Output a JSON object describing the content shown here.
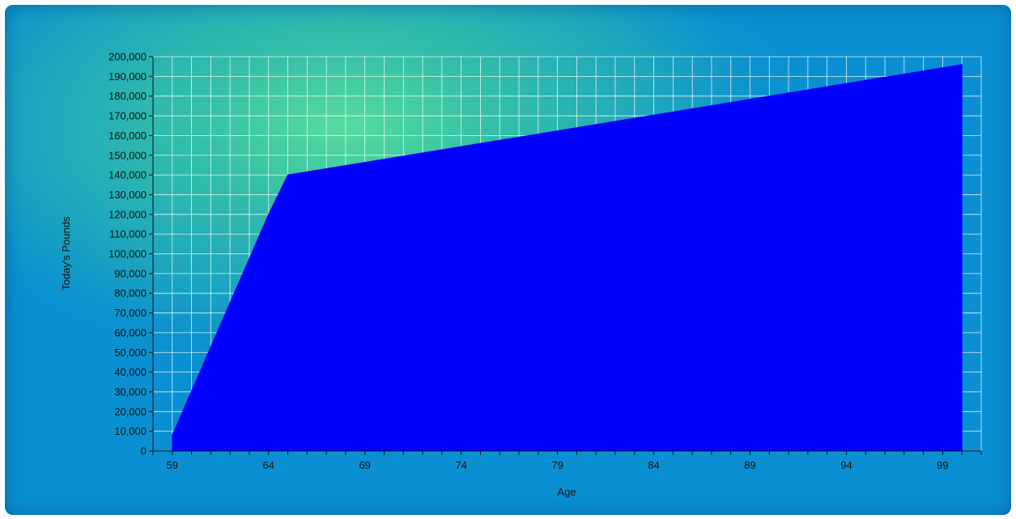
{
  "chart_data": {
    "type": "area",
    "xlabel": "Age",
    "ylabel": "Today's Pounds",
    "x": [
      59,
      64,
      65,
      100
    ],
    "series": [
      {
        "values": [
          8000,
          120000,
          140000,
          196000
        ],
        "color": "#0000ff"
      }
    ],
    "xlim": [
      58,
      101
    ],
    "ylim": [
      0,
      200000
    ],
    "x_ticks": [
      59,
      64,
      69,
      74,
      79,
      84,
      89,
      94,
      99
    ],
    "x_tick_labels": [
      "59",
      "64",
      "69",
      "74",
      "79",
      "84",
      "89",
      "94",
      "99"
    ],
    "y_ticks": [
      0,
      10000,
      20000,
      30000,
      40000,
      50000,
      60000,
      70000,
      80000,
      90000,
      100000,
      110000,
      120000,
      130000,
      140000,
      150000,
      160000,
      170000,
      180000,
      190000,
      200000
    ],
    "y_tick_labels": [
      "0",
      "10,000",
      "20,000",
      "30,000",
      "40,000",
      "50,000",
      "60,000",
      "70,000",
      "80,000",
      "90,000",
      "100,000",
      "110,000",
      "120,000",
      "130,000",
      "140,000",
      "150,000",
      "160,000",
      "170,000",
      "180,000",
      "190,000",
      "200,000"
    ],
    "grid": true,
    "grid_color": "#ffffff"
  }
}
